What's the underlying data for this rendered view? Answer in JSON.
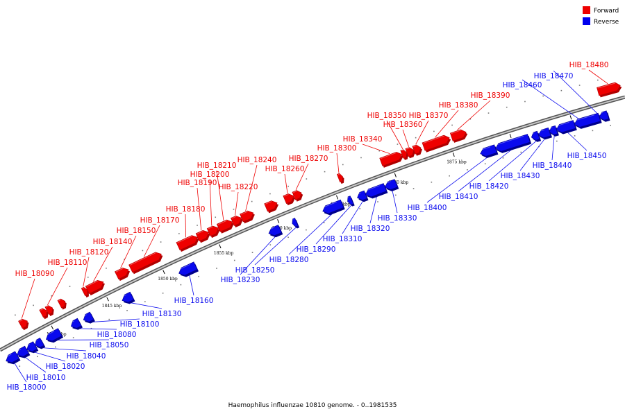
{
  "caption": "Haemophilus influenzae 10810 genome. - 0..1981535",
  "legend": [
    {
      "label": "Forward",
      "color": "#ee0000"
    },
    {
      "label": "Reverse",
      "color": "#0000ee"
    }
  ],
  "colors": {
    "forward": "#ee0000",
    "forward_dark": "#b00000",
    "reverse": "#0a0aee",
    "reverse_dark": "#00008a",
    "backbone": "#909090"
  },
  "ticks": [
    {
      "label": "1840 kbp"
    },
    {
      "label": "1845 kbp"
    },
    {
      "label": "1850 kbp"
    },
    {
      "label": "1855 kbp"
    },
    {
      "label": "1860 kbp"
    },
    {
      "label": "1865 kbp"
    },
    {
      "label": "1870 kbp"
    },
    {
      "label": "1875 kbp"
    },
    {
      "label": "1880 kbp"
    },
    {
      "label": "1885 kbp"
    }
  ],
  "forward_labels": [
    "HIB_18090",
    "HIB_18110",
    "HIB_18120",
    "HIB_18140",
    "HIB_18150",
    "HIB_18170",
    "HIB_18180",
    "HIB_18190",
    "HIB_18200",
    "HIB_18210",
    "HIB_18220",
    "HIB_18240",
    "HIB_18260",
    "HIB_18270",
    "HIB_18300",
    "HIB_18340",
    "HIB_18350",
    "HIB_18360",
    "HIB_18370",
    "HIB_18380",
    "HIB_18390",
    "HIB_18480"
  ],
  "reverse_labels": [
    "HIB_18000",
    "HIB_18010",
    "HIB_18020",
    "HIB_18040",
    "HIB_18050",
    "HIB_18080",
    "HIB_18100",
    "HIB_18130",
    "HIB_18160",
    "HIB_18230",
    "HIB_18250",
    "HIB_18280",
    "HIB_18290",
    "HIB_18310",
    "HIB_18320",
    "HIB_18330",
    "HIB_18400",
    "HIB_18410",
    "HIB_18420",
    "HIB_18430",
    "HIB_18440",
    "HIB_18450",
    "HIB_18460",
    "HIB_18470"
  ]
}
